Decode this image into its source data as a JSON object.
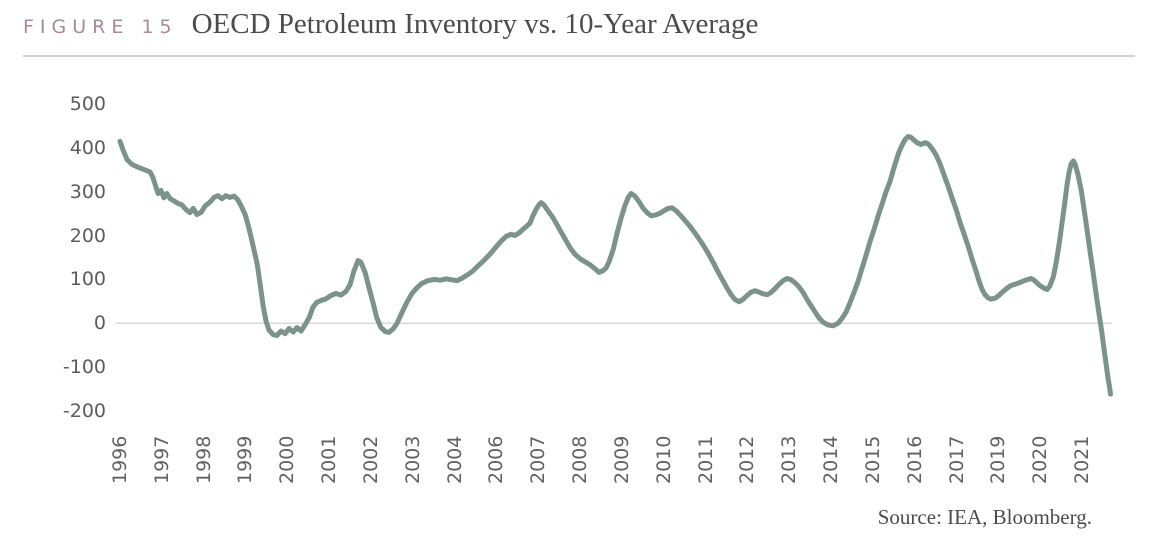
{
  "figure": {
    "label": "FIGURE 15",
    "title": "OECD Petroleum Inventory vs. 10-Year Average",
    "source": "Source: IEA, Bloomberg."
  },
  "colors": {
    "line": "#7b938b",
    "figure_label": "#a8899c",
    "title_text": "#4b4b4d",
    "tick_text": "#5c5c5c",
    "x_tick_text": "#616161",
    "rule": "#c6d4cd",
    "zero_gridline": "#d9d9d9",
    "source_text": "#4b4b4d"
  },
  "chart_data": {
    "type": "line",
    "title": "OECD Petroleum Inventory vs. 10-Year Average",
    "legend": "none",
    "grid": "zero-line only",
    "ylim": [
      -200,
      500
    ],
    "y_ticks": [
      500,
      400,
      300,
      200,
      100,
      0,
      -100,
      -200
    ],
    "x_tick_labels": [
      "1996",
      "1997",
      "1998",
      "1999",
      "2000",
      "2001",
      "2002",
      "2003",
      "2004",
      "2006",
      "2007",
      "2008",
      "2009",
      "2010",
      "2011",
      "2012",
      "2013",
      "2014",
      "2015",
      "2016",
      "2017",
      "2019",
      "2020",
      "2021"
    ],
    "x_unit": "tick-index units: 0 = '1996' tick, 1 per evenly-spaced tick (source chart skips 2005 and 2018)",
    "series": [
      {
        "name": "OECD petroleum inventory minus 10-year average",
        "points": [
          [
            0,
            415
          ],
          [
            0.07,
            396
          ],
          [
            0.17,
            373
          ],
          [
            0.29,
            362
          ],
          [
            0.43,
            356
          ],
          [
            0.57,
            351
          ],
          [
            0.72,
            345
          ],
          [
            0.79,
            332
          ],
          [
            0.86,
            310
          ],
          [
            0.91,
            296
          ],
          [
            0.98,
            303
          ],
          [
            1.05,
            286
          ],
          [
            1.12,
            296
          ],
          [
            1.2,
            284
          ],
          [
            1.29,
            279
          ],
          [
            1.39,
            273
          ],
          [
            1.48,
            270
          ],
          [
            1.58,
            259
          ],
          [
            1.67,
            252
          ],
          [
            1.75,
            262
          ],
          [
            1.84,
            248
          ],
          [
            1.94,
            253
          ],
          [
            2.03,
            267
          ],
          [
            2.15,
            276
          ],
          [
            2.25,
            287
          ],
          [
            2.34,
            291
          ],
          [
            2.44,
            284
          ],
          [
            2.53,
            291
          ],
          [
            2.63,
            287
          ],
          [
            2.73,
            290
          ],
          [
            2.82,
            281
          ],
          [
            2.92,
            263
          ],
          [
            2.99,
            248
          ],
          [
            3.06,
            225
          ],
          [
            3.13,
            198
          ],
          [
            3.2,
            168
          ],
          [
            3.28,
            135
          ],
          [
            3.35,
            90
          ],
          [
            3.42,
            40
          ],
          [
            3.49,
            5
          ],
          [
            3.56,
            -15
          ],
          [
            3.66,
            -26
          ],
          [
            3.75,
            -28
          ],
          [
            3.85,
            -18
          ],
          [
            3.95,
            -24
          ],
          [
            4.04,
            -12
          ],
          [
            4.14,
            -20
          ],
          [
            4.23,
            -10
          ],
          [
            4.33,
            -18
          ],
          [
            4.42,
            -4
          ],
          [
            4.52,
            12
          ],
          [
            4.61,
            36
          ],
          [
            4.71,
            48
          ],
          [
            4.81,
            52
          ],
          [
            4.93,
            56
          ],
          [
            5.04,
            63
          ],
          [
            5.16,
            68
          ],
          [
            5.28,
            64
          ],
          [
            5.4,
            72
          ],
          [
            5.5,
            88
          ],
          [
            5.59,
            118
          ],
          [
            5.69,
            143
          ],
          [
            5.76,
            139
          ],
          [
            5.86,
            116
          ],
          [
            5.95,
            82
          ],
          [
            6.05,
            46
          ],
          [
            6.14,
            12
          ],
          [
            6.24,
            -10
          ],
          [
            6.34,
            -19
          ],
          [
            6.43,
            -21
          ],
          [
            6.53,
            -13
          ],
          [
            6.62,
            -1
          ],
          [
            6.74,
            24
          ],
          [
            6.86,
            48
          ],
          [
            6.98,
            68
          ],
          [
            7.1,
            81
          ],
          [
            7.22,
            91
          ],
          [
            7.36,
            97
          ],
          [
            7.51,
            100
          ],
          [
            7.65,
            98
          ],
          [
            7.79,
            101
          ],
          [
            7.94,
            99
          ],
          [
            8.06,
            97
          ],
          [
            8.18,
            103
          ],
          [
            8.3,
            110
          ],
          [
            8.42,
            118
          ],
          [
            8.56,
            131
          ],
          [
            8.7,
            143
          ],
          [
            8.85,
            158
          ],
          [
            8.99,
            174
          ],
          [
            9.11,
            187
          ],
          [
            9.23,
            198
          ],
          [
            9.35,
            203
          ],
          [
            9.44,
            200
          ],
          [
            9.54,
            206
          ],
          [
            9.63,
            214
          ],
          [
            9.73,
            222
          ],
          [
            9.8,
            228
          ],
          [
            9.87,
            245
          ],
          [
            9.95,
            260
          ],
          [
            10.02,
            271
          ],
          [
            10.07,
            275
          ],
          [
            10.14,
            269
          ],
          [
            10.23,
            257
          ],
          [
            10.33,
            244
          ],
          [
            10.42,
            229
          ],
          [
            10.52,
            212
          ],
          [
            10.64,
            192
          ],
          [
            10.76,
            172
          ],
          [
            10.88,
            157
          ],
          [
            11,
            147
          ],
          [
            11.12,
            140
          ],
          [
            11.24,
            133
          ],
          [
            11.36,
            124
          ],
          [
            11.45,
            116
          ],
          [
            11.55,
            120
          ],
          [
            11.62,
            126
          ],
          [
            11.69,
            140
          ],
          [
            11.79,
            168
          ],
          [
            11.88,
            204
          ],
          [
            11.98,
            240
          ],
          [
            12.07,
            268
          ],
          [
            12.15,
            287
          ],
          [
            12.22,
            296
          ],
          [
            12.31,
            290
          ],
          [
            12.41,
            277
          ],
          [
            12.5,
            263
          ],
          [
            12.6,
            252
          ],
          [
            12.7,
            245
          ],
          [
            12.81,
            247
          ],
          [
            12.91,
            251
          ],
          [
            13.01,
            257
          ],
          [
            13.1,
            262
          ],
          [
            13.2,
            263
          ],
          [
            13.29,
            257
          ],
          [
            13.39,
            247
          ],
          [
            13.48,
            237
          ],
          [
            13.6,
            224
          ],
          [
            13.72,
            209
          ],
          [
            13.84,
            193
          ],
          [
            13.96,
            176
          ],
          [
            14.08,
            156
          ],
          [
            14.2,
            135
          ],
          [
            14.32,
            113
          ],
          [
            14.42,
            96
          ],
          [
            14.51,
            80
          ],
          [
            14.61,
            65
          ],
          [
            14.7,
            54
          ],
          [
            14.8,
            49
          ],
          [
            14.89,
            54
          ],
          [
            14.99,
            63
          ],
          [
            15.09,
            71
          ],
          [
            15.18,
            74
          ],
          [
            15.28,
            71
          ],
          [
            15.37,
            67
          ],
          [
            15.47,
            65
          ],
          [
            15.56,
            70
          ],
          [
            15.66,
            79
          ],
          [
            15.76,
            89
          ],
          [
            15.85,
            97
          ],
          [
            15.95,
            102
          ],
          [
            16.04,
            99
          ],
          [
            16.14,
            92
          ],
          [
            16.23,
            83
          ],
          [
            16.33,
            70
          ],
          [
            16.42,
            55
          ],
          [
            16.52,
            40
          ],
          [
            16.62,
            25
          ],
          [
            16.71,
            12
          ],
          [
            16.81,
            2
          ],
          [
            16.93,
            -4
          ],
          [
            17.05,
            -6
          ],
          [
            17.17,
            0
          ],
          [
            17.26,
            11
          ],
          [
            17.36,
            26
          ],
          [
            17.45,
            46
          ],
          [
            17.55,
            71
          ],
          [
            17.65,
            97
          ],
          [
            17.74,
            126
          ],
          [
            17.84,
            156
          ],
          [
            17.93,
            186
          ],
          [
            18.03,
            215
          ],
          [
            18.12,
            244
          ],
          [
            18.22,
            272
          ],
          [
            18.31,
            299
          ],
          [
            18.41,
            324
          ],
          [
            18.48,
            347
          ],
          [
            18.55,
            369
          ],
          [
            18.62,
            390
          ],
          [
            18.7,
            407
          ],
          [
            18.77,
            419
          ],
          [
            18.84,
            426
          ],
          [
            18.91,
            424
          ],
          [
            18.98,
            418
          ],
          [
            19.05,
            412
          ],
          [
            19.15,
            408
          ],
          [
            19.25,
            412
          ],
          [
            19.32,
            409
          ],
          [
            19.41,
            399
          ],
          [
            19.51,
            384
          ],
          [
            19.61,
            362
          ],
          [
            19.7,
            338
          ],
          [
            19.8,
            312
          ],
          [
            19.89,
            286
          ],
          [
            19.99,
            259
          ],
          [
            20.08,
            231
          ],
          [
            20.18,
            203
          ],
          [
            20.28,
            175
          ],
          [
            20.37,
            146
          ],
          [
            20.47,
            117
          ],
          [
            20.54,
            95
          ],
          [
            20.61,
            77
          ],
          [
            20.68,
            65
          ],
          [
            20.75,
            58
          ],
          [
            20.82,
            55
          ],
          [
            20.92,
            57
          ],
          [
            21.01,
            63
          ],
          [
            21.11,
            72
          ],
          [
            21.21,
            80
          ],
          [
            21.3,
            86
          ],
          [
            21.4,
            89
          ],
          [
            21.49,
            92
          ],
          [
            21.59,
            96
          ],
          [
            21.68,
            99
          ],
          [
            21.78,
            102
          ],
          [
            21.85,
            98
          ],
          [
            21.92,
            92
          ],
          [
            21.99,
            86
          ],
          [
            22.09,
            80
          ],
          [
            22.16,
            77
          ],
          [
            22.23,
            85
          ],
          [
            22.31,
            105
          ],
          [
            22.38,
            138
          ],
          [
            22.45,
            180
          ],
          [
            22.52,
            228
          ],
          [
            22.59,
            277
          ],
          [
            22.64,
            315
          ],
          [
            22.69,
            345
          ],
          [
            22.74,
            364
          ],
          [
            22.79,
            370
          ],
          [
            22.83,
            364
          ],
          [
            22.9,
            340
          ],
          [
            22.98,
            302
          ],
          [
            23.05,
            258
          ],
          [
            23.12,
            212
          ],
          [
            23.19,
            165
          ],
          [
            23.26,
            118
          ],
          [
            23.33,
            70
          ],
          [
            23.4,
            25
          ],
          [
            23.47,
            -20
          ],
          [
            23.52,
            -55
          ],
          [
            23.57,
            -90
          ],
          [
            23.62,
            -125
          ],
          [
            23.66,
            -148
          ],
          [
            23.68,
            -162
          ]
        ]
      }
    ]
  }
}
